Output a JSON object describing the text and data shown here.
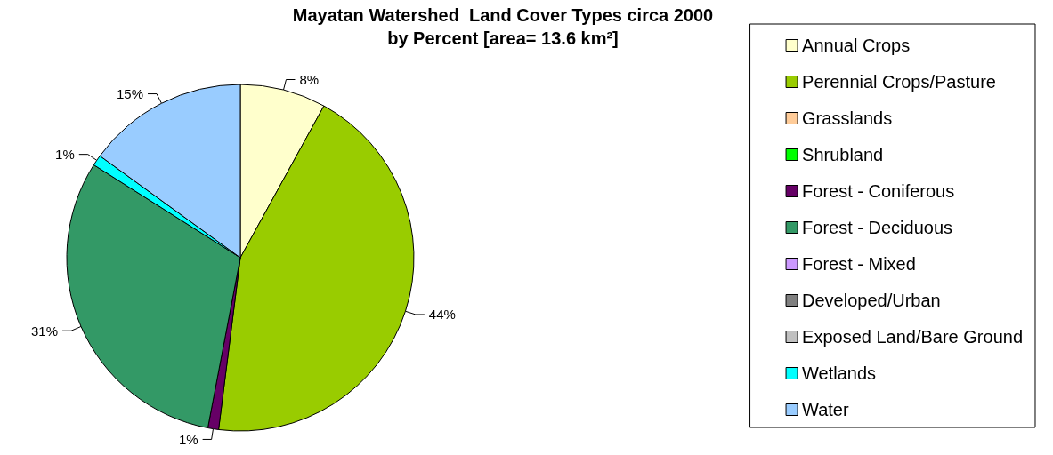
{
  "chart_data": {
    "type": "pie",
    "title": "Mayatan Watershed  Land Cover Types circa 2000",
    "subtitle": "by Percent [area= 13.6 km²]",
    "categories": [
      "Annual Crops",
      "Perennial Crops/Pasture",
      "Grasslands",
      "Shrubland",
      "Forest - Coniferous",
      "Forest - Deciduous",
      "Forest - Mixed",
      "Developed/Urban",
      "Exposed Land/Bare Ground",
      "Wetlands",
      "Water"
    ],
    "values": [
      8,
      44,
      0,
      0,
      1,
      31,
      0,
      0,
      0,
      1,
      15
    ],
    "value_labels": [
      "8%",
      "44%",
      null,
      null,
      "1%",
      "31%",
      null,
      null,
      null,
      "1%",
      "15%"
    ],
    "colors": [
      "#ffffcc",
      "#99cc00",
      "#ffcc99",
      "#00ff00",
      "#660066",
      "#339966",
      "#cc99ff",
      "#808080",
      "#c0c0c0",
      "#00ffff",
      "#99ccff"
    ],
    "legend": "right"
  }
}
